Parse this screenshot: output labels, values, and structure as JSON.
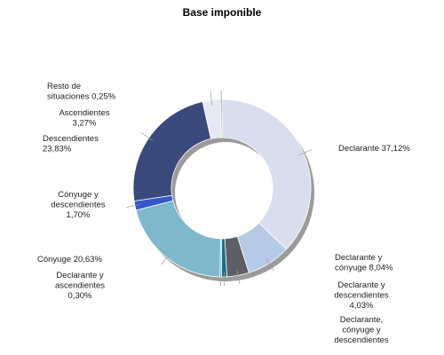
{
  "chart_data": {
    "type": "pie",
    "title": "Base imponible",
    "slices": [
      {
        "label": "Declarante",
        "value": 37.12,
        "value_text": "37,12%",
        "color": "#d9deef"
      },
      {
        "label": "Declarante y cónyuge",
        "value": 8.04,
        "value_text": "8,04%",
        "color": "#b6c9e6"
      },
      {
        "label": "Declarante y descendientes",
        "value": 4.03,
        "value_text": "4,03%",
        "color": "#5c6066"
      },
      {
        "label": "Declarante, cónyuge y descendientes",
        "value": 0.97,
        "value_text": "",
        "color": "#1f6b85"
      },
      {
        "label": "Declarante y ascendientes",
        "value": 0.3,
        "value_text": "0,30%",
        "color": "#35a8d8"
      },
      {
        "label": "Cónyuge",
        "value": 20.63,
        "value_text": "20,63%",
        "color": "#7fb8cc"
      },
      {
        "label": "Cónyuge y descendientes",
        "value": 1.7,
        "value_text": "1,70%",
        "color": "#3557c9"
      },
      {
        "label": "Descendientes",
        "value": 23.83,
        "value_text": "23,83%",
        "color": "#3b4a7c"
      },
      {
        "label": "Ascendientes",
        "value": 3.27,
        "value_text": "3,27%",
        "color": "#e6e9f3"
      },
      {
        "label": "Resto de situaciones",
        "value": 0.25,
        "value_text": "0,25%",
        "color": "#6f7f96"
      }
    ],
    "chart_style": "donut"
  }
}
